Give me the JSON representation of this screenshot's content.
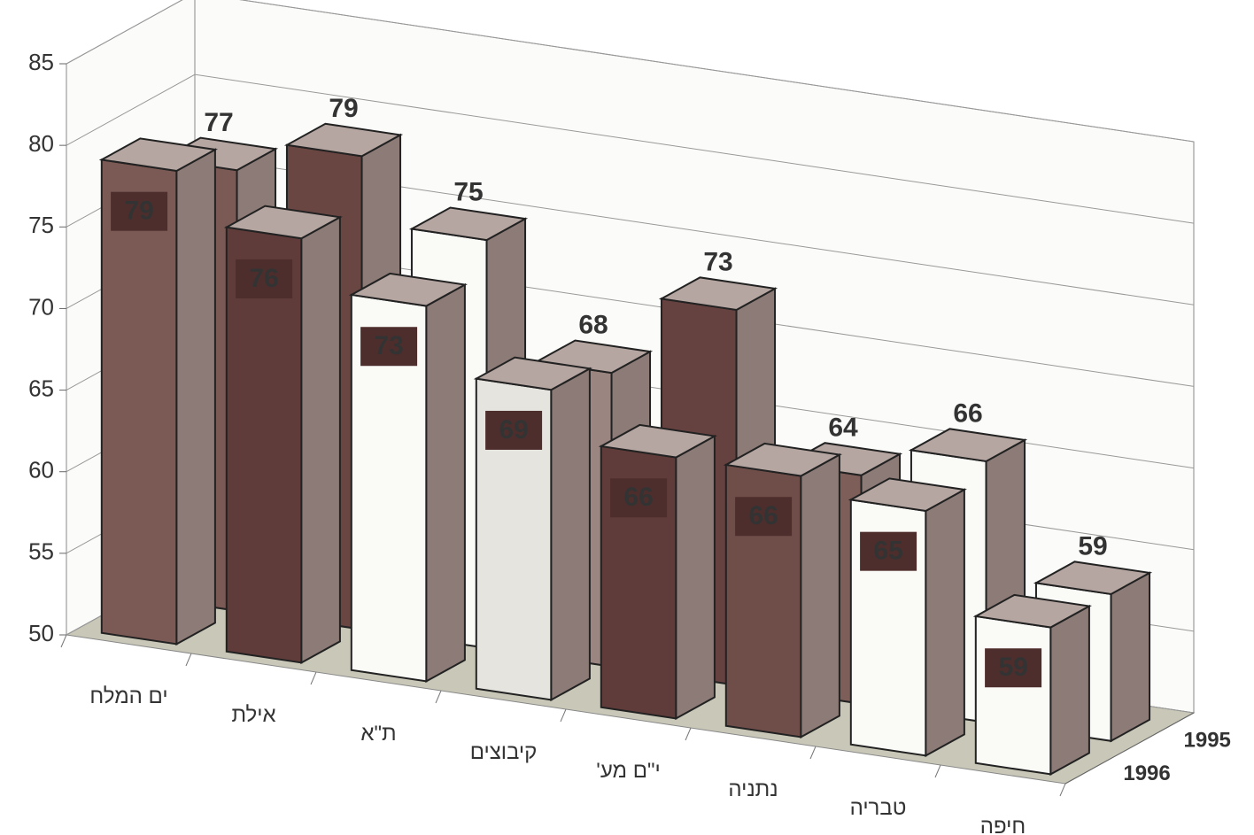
{
  "chart_data": {
    "type": "bar3d",
    "categories": [
      "ים המלח",
      "אילת",
      "ת\"א",
      "קיבוצים",
      "י\"ם מע'",
      "נתניה",
      "טבריה",
      "חיפה"
    ],
    "series": [
      {
        "name": "1995",
        "values": [
          77,
          79,
          75,
          68,
          73,
          64,
          66,
          59
        ],
        "colors": [
          "#7b5a55",
          "#6a4643",
          "#fafaf7",
          "#9a8580",
          "#654240",
          "#7d5e59",
          "#fafaf7",
          "#fafaf7"
        ]
      },
      {
        "name": "1996",
        "values": [
          79,
          76,
          73,
          69,
          66,
          66,
          65,
          59
        ],
        "colors": [
          "#7b5a55",
          "#5f3c39",
          "#fafaf7",
          "#e6e4de",
          "#5f3c39",
          "#6f4e4a",
          "#fafaf7",
          "#fafaf7"
        ]
      }
    ],
    "ylim": [
      50,
      85
    ],
    "yticks": [
      50,
      55,
      60,
      65,
      70,
      75,
      80,
      85
    ],
    "grid": true
  }
}
